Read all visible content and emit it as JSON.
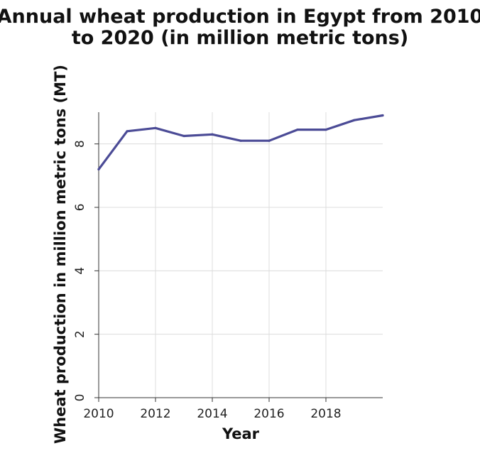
{
  "chart_data": {
    "type": "line",
    "title_lines": [
      "Annual wheat production in Egypt from 2010",
      "to 2020 (in million metric tons)"
    ],
    "xlabel": "Year",
    "ylabel": "Wheat production in million metric tons (MT)",
    "x_ticks": [
      2010,
      2012,
      2014,
      2016,
      2018
    ],
    "y_ticks": [
      0,
      2,
      4,
      6,
      8
    ],
    "xlim": [
      2010,
      2020
    ],
    "ylim": [
      0,
      9
    ],
    "grid": true,
    "legend": "none",
    "series": [
      {
        "color": "#4b4b96",
        "x": [
          2010,
          2011,
          2012,
          2013,
          2014,
          2015,
          2016,
          2017,
          2018,
          2019,
          2020
        ],
        "y": [
          7.2,
          8.4,
          8.5,
          8.25,
          8.3,
          8.1,
          8.1,
          8.45,
          8.45,
          8.75,
          8.9
        ]
      }
    ]
  }
}
